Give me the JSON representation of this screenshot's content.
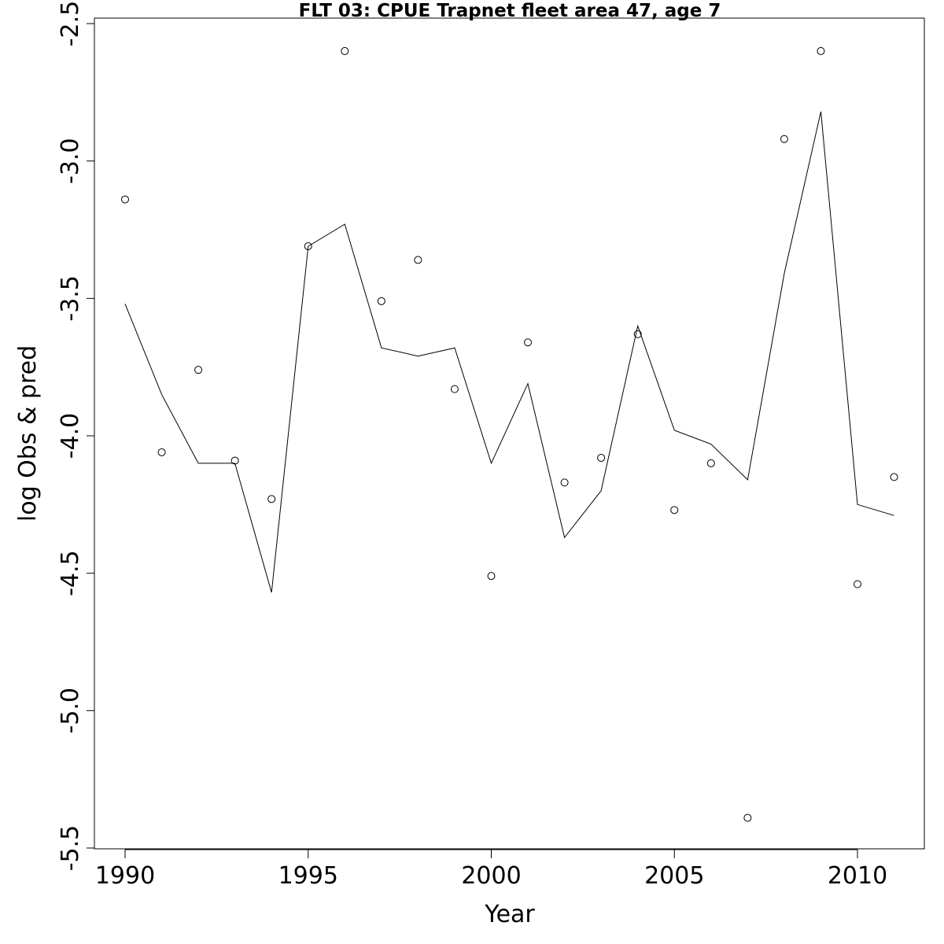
{
  "chart_data": {
    "type": "scatter",
    "title": "FLT 03: CPUE Trapnet fleet area 47, age 7",
    "xlabel": "Year",
    "ylabel": "log Obs & pred",
    "xlim": [
      1989.5,
      2011.8
    ],
    "ylim": [
      -5.5,
      -2.5
    ],
    "xticks": [
      1990,
      1995,
      2000,
      2005,
      2010
    ],
    "yticks": [
      -2.5,
      -3.0,
      -3.5,
      -4.0,
      -4.5,
      -5.0,
      -5.5
    ],
    "ytick_labels": [
      "-2.5",
      "-3.0",
      "-3.5",
      "-4.0",
      "-4.5",
      "-5.0",
      "-5.5"
    ],
    "grid": false,
    "legend": "none",
    "series": [
      {
        "style": "points",
        "x": [
          1990,
          1991,
          1992,
          1993,
          1994,
          1995,
          1996,
          1997,
          1998,
          1999,
          2000,
          2001,
          2002,
          2003,
          2004,
          2005,
          2006,
          2007,
          2008,
          2009,
          2010,
          2011
        ],
        "y": [
          -3.14,
          -4.06,
          -3.76,
          -4.09,
          -4.23,
          -3.31,
          -2.6,
          -3.51,
          -3.36,
          -3.83,
          -4.51,
          -3.66,
          -4.17,
          -4.08,
          -3.63,
          -4.27,
          -4.1,
          -5.39,
          -2.92,
          -2.6,
          -4.54,
          -4.15
        ]
      },
      {
        "style": "line",
        "x": [
          1990,
          1991,
          1992,
          1993,
          1994,
          1995,
          1996,
          1997,
          1998,
          1999,
          2000,
          2001,
          2002,
          2003,
          2004,
          2005,
          2006,
          2007,
          2008,
          2009,
          2010,
          2011
        ],
        "y": [
          -3.52,
          -3.85,
          -4.1,
          -4.1,
          -4.57,
          -3.31,
          -3.23,
          -3.68,
          -3.71,
          -3.68,
          -4.1,
          -3.81,
          -4.37,
          -4.2,
          -3.6,
          -3.98,
          -4.03,
          -4.16,
          -3.41,
          -2.82,
          -4.25,
          -4.29
        ]
      }
    ]
  }
}
